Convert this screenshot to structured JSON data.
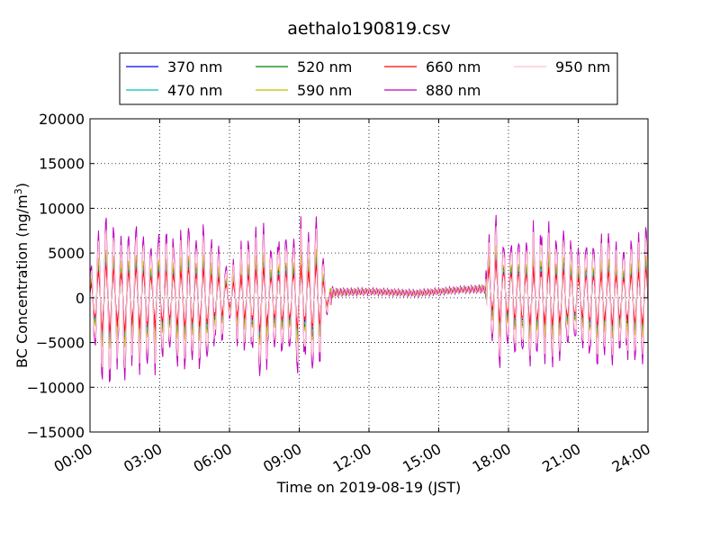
{
  "chart_data": {
    "type": "line",
    "title": "aethalo190819.csv",
    "xlabel": "Time on 2019-08-19 (JST)",
    "ylabel": "BC Concentration (ng/m",
    "ylabel_sup": "3",
    "ylabel_close": ")",
    "xlim": [
      "00:00",
      "24:00"
    ],
    "ylim": [
      -15000,
      20000
    ],
    "grid": true,
    "legend_placement": "top-center",
    "x_ticks": [
      "00:00",
      "03:00",
      "06:00",
      "09:00",
      "12:00",
      "15:00",
      "18:00",
      "21:00",
      "24:00"
    ],
    "y_ticks": [
      "20000",
      "15000",
      "10000",
      "5000",
      "0",
      "−5000",
      "−10000",
      "−15000"
    ],
    "series": [
      {
        "name": "370 nm",
        "color": "#0000ff",
        "scale": 0.45
      },
      {
        "name": "470 nm",
        "color": "#00bfbf",
        "scale": 0.5
      },
      {
        "name": "520 nm",
        "color": "#008000",
        "scale": 0.55
      },
      {
        "name": "590 nm",
        "color": "#bfbf00",
        "scale": 0.6
      },
      {
        "name": "660 nm",
        "color": "#ff0000",
        "scale": 0.4
      },
      {
        "name": "880 nm",
        "color": "#bf00bf",
        "scale": 1.0
      },
      {
        "name": "950 nm",
        "color": "#ffc0cb",
        "scale": 0.85
      }
    ],
    "envelope": {
      "note": "approximate amplitude envelope of the 880 nm trace by time (hours, ng/m3)",
      "x": [
        0.0,
        0.3,
        1.0,
        2.0,
        3.0,
        4.0,
        5.0,
        6.0,
        7.0,
        8.0,
        9.0,
        9.8,
        10.2,
        10.5,
        12.0,
        14.0,
        16.0,
        17.0,
        17.2,
        18.0,
        19.0,
        20.0,
        21.0,
        22.0,
        23.0,
        24.0
      ],
      "amplitude": [
        3000,
        11000,
        10000,
        9000,
        9000,
        9500,
        9000,
        3500,
        9500,
        9000,
        9500,
        10000,
        2000,
        500,
        400,
        400,
        400,
        500,
        10000,
        8000,
        9000,
        9000,
        7000,
        8000,
        8000,
        8500
      ],
      "baseline": [
        0,
        0,
        0,
        0,
        0,
        0,
        0,
        0,
        0,
        0,
        0,
        0,
        0,
        600,
        700,
        500,
        900,
        1000,
        1000,
        500,
        0,
        0,
        0,
        0,
        0,
        0
      ]
    }
  }
}
